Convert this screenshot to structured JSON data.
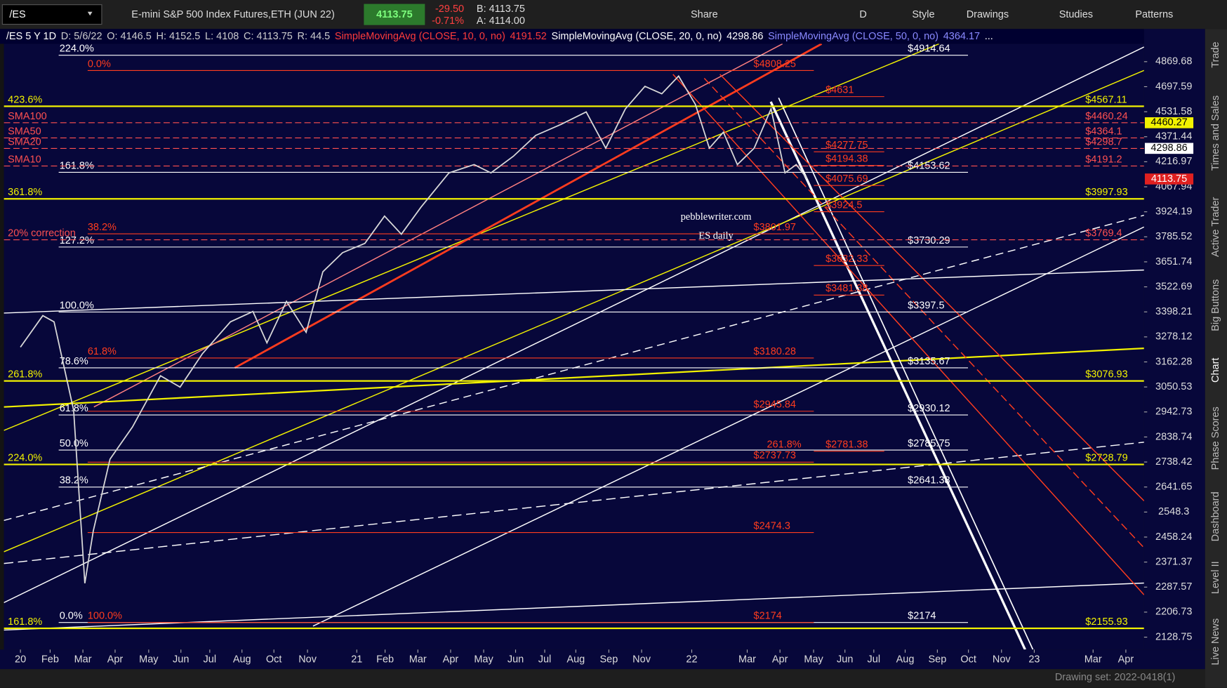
{
  "toolbar": {
    "description": "E-mini S&P 500 Index Futures,ETH (JUN 22)",
    "last": 4113.75,
    "change": "-29.50",
    "change_pct": "-0.71%",
    "bid": "B: 4113.75",
    "ask": "A: 4114.00",
    "buttons": [
      "Share",
      "D",
      "Style",
      "Drawings",
      "Studies",
      "Patterns"
    ]
  },
  "legend": [
    {
      "text": "/ES 5 Y 1D",
      "color": "#ffffff"
    },
    {
      "text": "D: 5/6/22",
      "color": "#cccccc"
    },
    {
      "text": "O: 4146.5",
      "color": "#cccccc"
    },
    {
      "text": "H: 4152.5",
      "color": "#cccccc"
    },
    {
      "text": "L: 4108",
      "color": "#cccccc"
    },
    {
      "text": "C: 4113.75",
      "color": "#cccccc"
    },
    {
      "text": "R: 44.5",
      "color": "#cccccc"
    },
    {
      "text": "SimpleMovingAvg (CLOSE, 10, 0, no)",
      "color": "#ff3b3b"
    },
    {
      "text": "4191.52",
      "color": "#ff3b3b"
    },
    {
      "text": "SimpleMovingAvg (CLOSE, 20, 0, no)",
      "color": "#ffffff"
    },
    {
      "text": "4298.86",
      "color": "#ffffff"
    },
    {
      "text": "SimpleMovingAvg (CLOSE, 50, 0, no)",
      "color": "#8a8aff"
    },
    {
      "text": "4364.17",
      "color": "#8a8aff"
    },
    {
      "text": "...",
      "color": "#ffffff"
    }
  ],
  "sidebar": [
    "Trade",
    "Times and Sales",
    "Active Trader",
    "Big Buttons",
    "Chart",
    "Phase Scores",
    "Dashboard",
    "Level II",
    "Live News"
  ],
  "status": "Drawing set: 2022-0418(1)",
  "chart_data": {
    "type": "line",
    "watermark": [
      "pebblewriter.com",
      "ES daily"
    ],
    "log_y": true,
    "xlim": [
      -0.59,
      40.12
    ],
    "ylim": [
      2091,
      5087
    ],
    "x": [
      0,
      0.8,
      1.2,
      1.9,
      2.3,
      2.6,
      3.2,
      4,
      5,
      5.7,
      6.5,
      7.5,
      8.3,
      8.8,
      9.5,
      10.2,
      10.8,
      11.5,
      12.3,
      13,
      13.6,
      14.3,
      15.3,
      16.2,
      16.8,
      17.6,
      18.4,
      19.3,
      20.2,
      20.9,
      21.6,
      22.3,
      22.9,
      23.5,
      24.1,
      24.6,
      25.1,
      25.6,
      26.2,
      26.8,
      27.3,
      27.7,
      28.1
    ],
    "series": [
      {
        "name": "/ES",
        "color": "#d8d8d8",
        "values": [
          3230,
          3380,
          3350,
          2950,
          2300,
          2480,
          2750,
          2880,
          3100,
          3050,
          3200,
          3350,
          3400,
          3250,
          3450,
          3300,
          3600,
          3700,
          3750,
          3900,
          3800,
          3950,
          4150,
          4200,
          4150,
          4250,
          4380,
          4450,
          4530,
          4300,
          4550,
          4700,
          4650,
          4770,
          4580,
          4300,
          4400,
          4200,
          4300,
          4550,
          4150,
          4200,
          4113.75
        ]
      }
    ],
    "yticks": [
      4869.68,
      4697.59,
      4531.58,
      4371.44,
      4216.97,
      4067.94,
      3924.19,
      3785.52,
      3651.74,
      3522.69,
      3398.21,
      3278.12,
      3162.28,
      3050.53,
      2942.73,
      2838.74,
      2738.42,
      2641.65,
      2548.3,
      2458.24,
      2371.37,
      2287.57,
      2206.73,
      2128.75
    ],
    "xticks": [
      {
        "value": 0,
        "label": "20"
      },
      {
        "value": 1.06,
        "label": "Feb"
      },
      {
        "value": 2.23,
        "label": "Mar"
      },
      {
        "value": 3.38,
        "label": "Apr"
      },
      {
        "value": 4.58,
        "label": "May"
      },
      {
        "value": 5.73,
        "label": "Jun"
      },
      {
        "value": 6.76,
        "label": "Jul"
      },
      {
        "value": 7.91,
        "label": "Aug"
      },
      {
        "value": 9.05,
        "label": "Oct"
      },
      {
        "value": 10.25,
        "label": "Nov"
      },
      {
        "value": 12.01,
        "label": "21"
      },
      {
        "value": 13.02,
        "label": "Feb"
      },
      {
        "value": 14.19,
        "label": "Mar"
      },
      {
        "value": 15.36,
        "label": "Apr"
      },
      {
        "value": 16.54,
        "label": "May"
      },
      {
        "value": 17.68,
        "label": "Jun"
      },
      {
        "value": 18.72,
        "label": "Jul"
      },
      {
        "value": 19.83,
        "label": "Aug"
      },
      {
        "value": 21.01,
        "label": "Sep"
      },
      {
        "value": 22.18,
        "label": "Nov"
      },
      {
        "value": 23.97,
        "label": "22"
      },
      {
        "value": 25.95,
        "label": "Mar"
      },
      {
        "value": 27.12,
        "label": "Apr"
      },
      {
        "value": 28.32,
        "label": "May"
      },
      {
        "value": 29.44,
        "label": "Jun"
      },
      {
        "value": 30.47,
        "label": "Jul"
      },
      {
        "value": 31.59,
        "label": "Aug"
      },
      {
        "value": 32.74,
        "label": "Sep"
      },
      {
        "value": 33.85,
        "label": "Oct"
      },
      {
        "value": 35.03,
        "label": "Nov"
      },
      {
        "value": 36.2,
        "label": "23"
      },
      {
        "value": 38.3,
        "label": "Mar"
      },
      {
        "value": 39.47,
        "label": "Apr"
      }
    ],
    "levels": [
      {
        "color": "#ffffff",
        "items": [
          {
            "value": 4914.64,
            "label": "$4914.64",
            "tag": "224.0%"
          },
          {
            "value": 4153.62,
            "label": "$4153.62",
            "tag": "161.8%"
          },
          {
            "value": 3730.29,
            "label": "$3730.29",
            "tag": "127.2%"
          },
          {
            "value": 3397.5,
            "label": "$3397.5",
            "tag": "100.0%"
          },
          {
            "value": 3135.67,
            "label": "$3135.67",
            "tag": "78.6%"
          },
          {
            "value": 2930.12,
            "label": "$2930.12",
            "tag": "61.8%"
          },
          {
            "value": 2785.75,
            "label": "$2785.75",
            "tag": "50.0%"
          },
          {
            "value": 2641.38,
            "label": "$2641.38",
            "tag": "38.2%"
          },
          {
            "value": 2174,
            "label": "$2174",
            "tag": "0.0%"
          }
        ]
      },
      {
        "color": "#f2f200",
        "items": [
          {
            "value": 4567.11,
            "label": "$4567.11",
            "tag": "423.6%"
          },
          {
            "value": 3997.93,
            "label": "$3997.93",
            "tag": "361.8%"
          },
          {
            "value": 3076.93,
            "label": "$3076.93",
            "tag": "261.8%"
          },
          {
            "value": 2728.79,
            "label": "$2728.79",
            "tag": "224.0%"
          },
          {
            "value": 2155.93,
            "label": "$2155.93",
            "tag": "161.8%"
          }
        ]
      },
      {
        "color": "#ff3c1e",
        "items": [
          {
            "value": 4808.25,
            "label": "$4808.25",
            "tag": "0.0%"
          },
          {
            "value": 3801.97,
            "label": "$3801.97",
            "tag": "38.2%"
          },
          {
            "value": 3180.28,
            "label": "$3180.28",
            "tag": "61.8%"
          },
          {
            "value": 2945.84,
            "label": "$2945.84"
          },
          {
            "value": 2737.73,
            "label": "$2737.73"
          },
          {
            "value": 2474.3,
            "label": "$2474.3"
          },
          {
            "value": 2174,
            "label": "$2174",
            "tag": "100.0%"
          }
        ]
      },
      {
        "color": "#ff3c1e",
        "items": [
          {
            "value": 4631,
            "label": "$4631"
          },
          {
            "value": 4277.75,
            "label": "$4277.75"
          },
          {
            "value": 4194.38,
            "label": "$4194.38"
          },
          {
            "value": 4075.69,
            "label": "$4075.69"
          },
          {
            "value": 3924.5,
            "label": "$3924.5"
          },
          {
            "value": 3632.33,
            "label": "$3632.33"
          },
          {
            "value": 3481.38,
            "label": "$3481.38"
          },
          {
            "value": 2781.38,
            "label": "$2781.38",
            "tag": "261.8%"
          }
        ]
      },
      {
        "color": "#ff5050",
        "items": [
          {
            "value": 4460.24,
            "label": "$4460.24",
            "tag": "SMA100"
          },
          {
            "value": 4364.1,
            "label": "$4364.1",
            "tag": "SMA50"
          },
          {
            "value": 4298.7,
            "label": "$4298.7",
            "tag": "SMA20"
          },
          {
            "value": 4191.2,
            "label": "$4191.2",
            "tag": "SMA10"
          },
          {
            "value": 3769.4,
            "label": "$3769.4",
            "tag": "20% correction"
          }
        ]
      }
    ],
    "price_badges": [
      {
        "value": 4460.27,
        "color": "#f2f200"
      },
      {
        "value": 4298.86,
        "color": "#ffffff"
      },
      {
        "value": 4113.75,
        "color": "#e02020"
      }
    ]
  }
}
